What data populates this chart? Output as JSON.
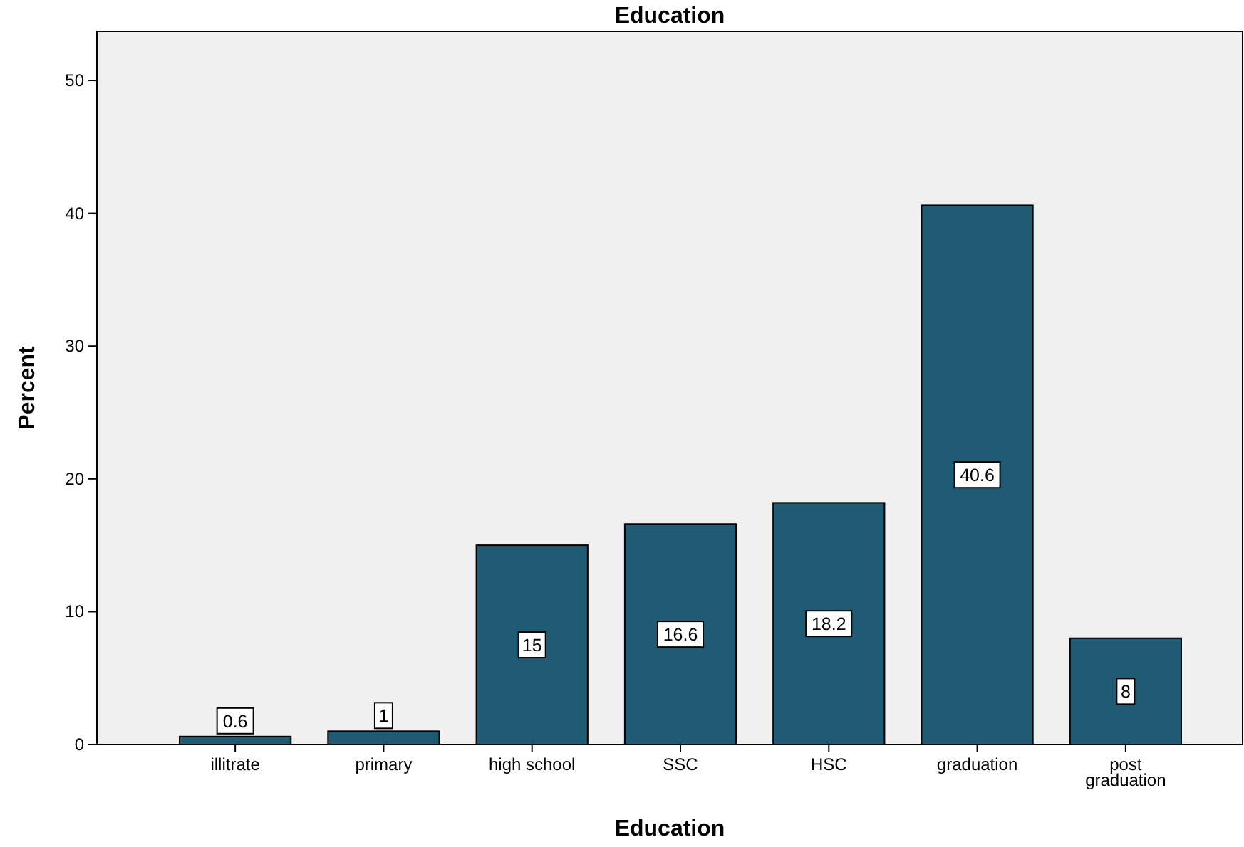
{
  "chart_data": {
    "type": "bar",
    "title": "Education",
    "xlabel": "Education",
    "ylabel": "Percent",
    "categories": [
      "illitrate",
      "primary",
      "high school",
      "SSC",
      "HSC",
      "graduation",
      "post graduation"
    ],
    "values": [
      0.6,
      1,
      15,
      16.6,
      18.2,
      40.6,
      8
    ],
    "color": "#1f5c74",
    "ylim": [
      0,
      53.7
    ],
    "yticks": [
      0,
      10,
      20,
      30,
      40,
      50
    ],
    "data_labels": true,
    "grid": false
  }
}
